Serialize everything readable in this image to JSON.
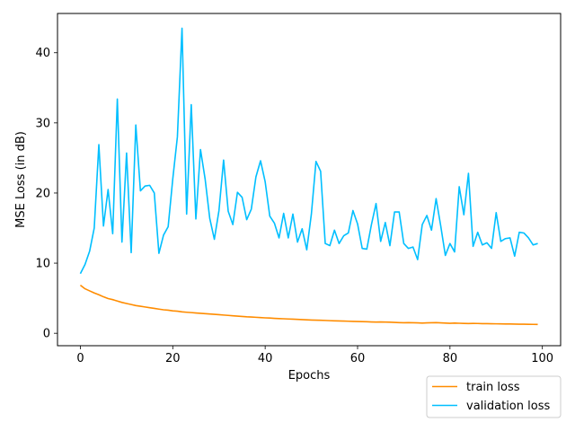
{
  "chart_data": {
    "type": "line",
    "title": "",
    "xlabel": "Epochs",
    "ylabel": "MSE Loss (in dB)",
    "xlim": [
      -4.95,
      103.95
    ],
    "ylim": [
      -1.77,
      45.6
    ],
    "x_ticks": [
      0,
      20,
      40,
      60,
      80,
      100
    ],
    "y_ticks": [
      0,
      10,
      20,
      30,
      40
    ],
    "grid": false,
    "legend_position": "lower-right-outside",
    "series": [
      {
        "name": "train loss",
        "color": "#ff8c00",
        "x": [
          0,
          1,
          2,
          3,
          4,
          5,
          6,
          7,
          8,
          9,
          10,
          11,
          12,
          13,
          14,
          15,
          16,
          17,
          18,
          19,
          20,
          21,
          22,
          23,
          24,
          25,
          26,
          27,
          28,
          29,
          30,
          31,
          32,
          33,
          34,
          35,
          36,
          37,
          38,
          39,
          40,
          41,
          42,
          43,
          44,
          45,
          46,
          47,
          48,
          49,
          50,
          51,
          52,
          53,
          54,
          55,
          56,
          57,
          58,
          59,
          60,
          61,
          62,
          63,
          64,
          65,
          66,
          67,
          68,
          69,
          70,
          71,
          72,
          73,
          74,
          75,
          76,
          77,
          78,
          79,
          80,
          81,
          82,
          83,
          84,
          85,
          86,
          87,
          88,
          89,
          90,
          91,
          92,
          93,
          94,
          95,
          96,
          97,
          98,
          99
        ],
        "values": [
          6.85,
          6.35,
          6.05,
          5.75,
          5.5,
          5.2,
          4.95,
          4.8,
          4.6,
          4.4,
          4.25,
          4.1,
          3.95,
          3.85,
          3.75,
          3.65,
          3.55,
          3.45,
          3.35,
          3.3,
          3.2,
          3.15,
          3.05,
          3.0,
          2.95,
          2.9,
          2.85,
          2.8,
          2.75,
          2.7,
          2.65,
          2.6,
          2.55,
          2.5,
          2.45,
          2.4,
          2.35,
          2.32,
          2.28,
          2.24,
          2.2,
          2.17,
          2.13,
          2.1,
          2.07,
          2.04,
          2.01,
          1.98,
          1.95,
          1.92,
          1.89,
          1.87,
          1.85,
          1.83,
          1.8,
          1.78,
          1.76,
          1.74,
          1.72,
          1.7,
          1.68,
          1.66,
          1.64,
          1.62,
          1.6,
          1.62,
          1.6,
          1.58,
          1.55,
          1.52,
          1.5,
          1.52,
          1.5,
          1.48,
          1.46,
          1.48,
          1.5,
          1.52,
          1.48,
          1.45,
          1.42,
          1.45,
          1.43,
          1.41,
          1.39,
          1.41,
          1.4,
          1.38,
          1.37,
          1.36,
          1.35,
          1.34,
          1.33,
          1.32,
          1.31,
          1.3,
          1.29,
          1.28,
          1.27,
          1.26
        ]
      },
      {
        "name": "validation loss",
        "color": "#00bfff",
        "x": [
          0,
          1,
          2,
          3,
          4,
          5,
          6,
          7,
          8,
          9,
          10,
          11,
          12,
          13,
          14,
          15,
          16,
          17,
          18,
          19,
          20,
          21,
          22,
          23,
          24,
          25,
          26,
          27,
          28,
          29,
          30,
          31,
          32,
          33,
          34,
          35,
          36,
          37,
          38,
          39,
          40,
          41,
          42,
          43,
          44,
          45,
          46,
          47,
          48,
          49,
          50,
          51,
          52,
          53,
          54,
          55,
          56,
          57,
          58,
          59,
          60,
          61,
          62,
          63,
          64,
          65,
          66,
          67,
          68,
          69,
          70,
          71,
          72,
          73,
          74,
          75,
          76,
          77,
          78,
          79,
          80,
          81,
          82,
          83,
          84,
          85,
          86,
          87,
          88,
          89,
          90,
          91,
          92,
          93,
          94,
          95,
          96,
          97,
          98,
          99
        ],
        "values": [
          8.5,
          9.8,
          11.7,
          15.0,
          26.9,
          15.3,
          20.5,
          14.2,
          33.4,
          13.0,
          25.7,
          11.5,
          29.7,
          20.3,
          21.0,
          21.1,
          20.0,
          11.4,
          14.0,
          15.2,
          22.0,
          28.0,
          43.5,
          17.0,
          32.6,
          16.3,
          26.2,
          22.0,
          16.4,
          13.4,
          17.5,
          24.7,
          17.4,
          15.5,
          20.1,
          19.4,
          16.2,
          17.7,
          22.3,
          24.6,
          21.6,
          16.7,
          15.7,
          13.6,
          17.1,
          13.6,
          17.0,
          13.0,
          14.9,
          11.9,
          17.0,
          24.5,
          23.1,
          12.8,
          12.5,
          14.7,
          12.8,
          13.9,
          14.3,
          17.5,
          15.6,
          12.1,
          12.0,
          15.5,
          18.5,
          13.1,
          15.8,
          12.5,
          17.3,
          17.3,
          12.8,
          12.1,
          12.3,
          10.5,
          15.5,
          16.8,
          14.7,
          19.2,
          15.3,
          11.1,
          12.8,
          11.6,
          20.9,
          16.9,
          22.8,
          12.4,
          14.4,
          12.6,
          12.9,
          12.1,
          17.2,
          13.1,
          13.5,
          13.6,
          11.0,
          14.4,
          14.3,
          13.6,
          12.6,
          12.8
        ]
      }
    ]
  }
}
